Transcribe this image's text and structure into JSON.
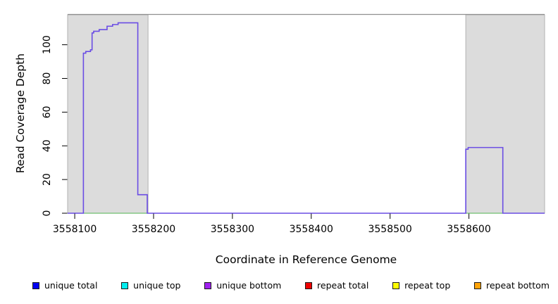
{
  "chart_data": {
    "type": "line",
    "title": "",
    "xlabel": "Coordinate in Reference Genome",
    "ylabel": "Read Coverage Depth",
    "xlim": [
      3558091,
      3558696
    ],
    "ylim": [
      0,
      118
    ],
    "x_ticks": [
      3558100,
      3558200,
      3558300,
      3558400,
      3558500,
      3558600
    ],
    "y_ticks": [
      0,
      20,
      40,
      60,
      80,
      100
    ],
    "grid": false,
    "region_fill": "#dcdcdc",
    "region_border": "#b2b2b2",
    "top_border_color": "#8f8f8f",
    "tick_color": "#000000",
    "highlight_regions": [
      {
        "name": "shaded-region-left",
        "x0": 3558091,
        "x1": 3558193
      },
      {
        "name": "shaded-region-right",
        "x0": 3558596,
        "x1": 3558696
      }
    ],
    "series": [
      {
        "name": "zero-line-green-left",
        "color": "#6fbf6f",
        "width": 1.2,
        "points": [
          [
            3558111,
            0
          ],
          [
            3558192,
            0
          ]
        ]
      },
      {
        "name": "zero-line-green-right",
        "color": "#6fbf6f",
        "width": 1.2,
        "points": [
          [
            3558596,
            0
          ],
          [
            3558643,
            0
          ]
        ]
      },
      {
        "name": "unique-coverage-depth",
        "color": "#6a4de4",
        "width": 1.6,
        "points": [
          [
            3558091,
            0
          ],
          [
            3558111,
            0
          ],
          [
            3558111,
            95
          ],
          [
            3558114,
            95
          ],
          [
            3558114,
            96
          ],
          [
            3558120,
            96
          ],
          [
            3558120,
            97
          ],
          [
            3558122,
            97
          ],
          [
            3558122,
            107
          ],
          [
            3558124,
            107
          ],
          [
            3558124,
            108
          ],
          [
            3558131,
            108
          ],
          [
            3558131,
            109
          ],
          [
            3558141,
            109
          ],
          [
            3558141,
            111
          ],
          [
            3558148,
            111
          ],
          [
            3558148,
            112
          ],
          [
            3558155,
            112
          ],
          [
            3558155,
            113
          ],
          [
            3558180,
            113
          ],
          [
            3558180,
            11
          ],
          [
            3558192,
            11
          ],
          [
            3558192,
            0
          ],
          [
            3558596,
            0
          ],
          [
            3558596,
            38
          ],
          [
            3558599,
            38
          ],
          [
            3558599,
            39
          ],
          [
            3558643,
            39
          ],
          [
            3558643,
            0
          ],
          [
            3558696,
            0
          ]
        ]
      }
    ],
    "legend_position": "bottom",
    "legend": [
      {
        "label": "unique total",
        "color": "#0000f2"
      },
      {
        "label": "unique top",
        "color": "#00eef0"
      },
      {
        "label": "unique bottom",
        "color": "#a020f0"
      },
      {
        "label": "repeat total",
        "color": "#ee0000"
      },
      {
        "label": "repeat top",
        "color": "#fdff00"
      },
      {
        "label": "repeat bottom",
        "color": "#ffa308"
      }
    ]
  }
}
